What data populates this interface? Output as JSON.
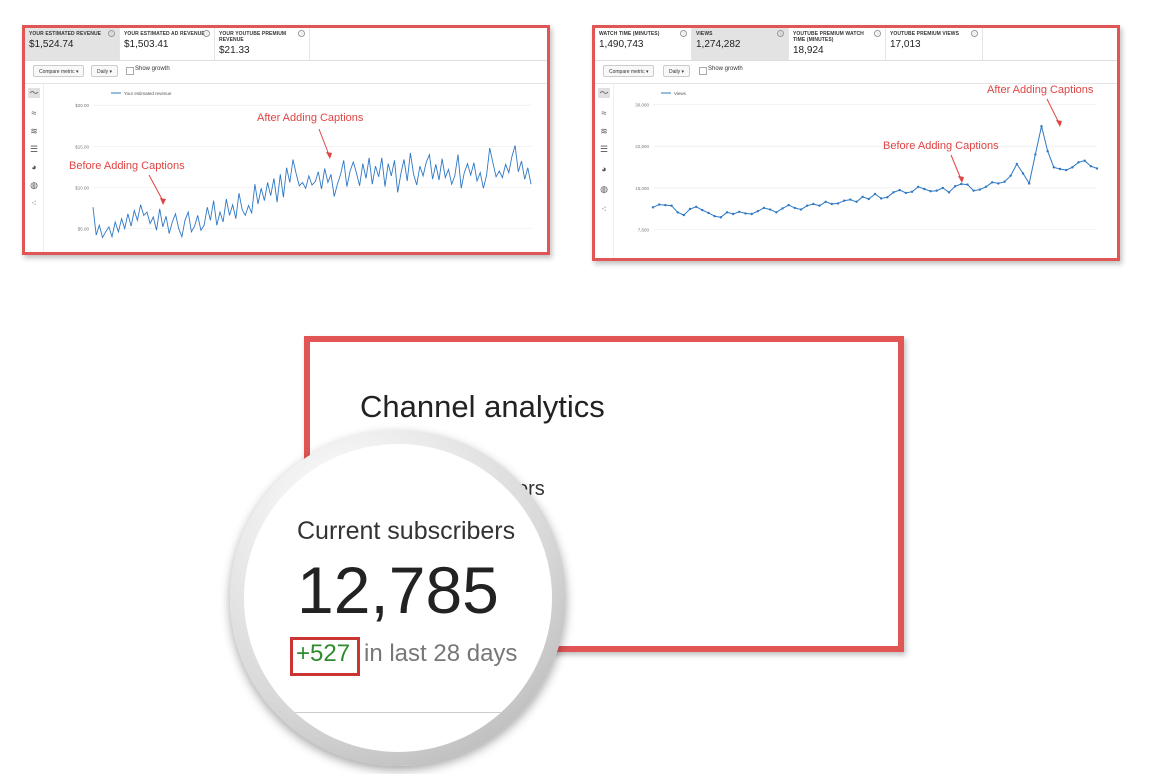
{
  "left_panel": {
    "metrics": [
      {
        "label": "YOUR ESTIMATED REVENUE",
        "value": "$1,524.74"
      },
      {
        "label": "YOUR ESTIMATED AD REVENUE",
        "value": "$1,503.41"
      },
      {
        "label": "YOUR YOUTUBE PREMIUM REVENUE",
        "value": "$21.33"
      }
    ],
    "compare_label": "Compare metric ▾",
    "period_label": "Daily ▾",
    "growth_label": "Show growth",
    "legend": "Your estimated revenue",
    "annotation_before": "Before Adding Captions",
    "annotation_after": "After Adding Captions"
  },
  "right_panel": {
    "metrics": [
      {
        "label": "WATCH TIME (MINUTES)",
        "value": "1,490,743"
      },
      {
        "label": "VIEWS",
        "value": "1,274,282"
      },
      {
        "label": "YOUTUBE PREMIUM WATCH TIME (MINUTES)",
        "value": "18,924"
      },
      {
        "label": "YOUTUBE PREMIUM VIEWS",
        "value": "17,013"
      }
    ],
    "compare_label": "Compare metric ▾",
    "period_label": "Daily ▾",
    "growth_label": "Show growth",
    "legend": "Views",
    "annotation_before": "Before Adding Captions",
    "annotation_after": "After Adding Captions"
  },
  "chart_data": [
    {
      "type": "line",
      "ylabel": "",
      "yticks": [
        "$20.00",
        "$15.00",
        "$10.00",
        "$5.00"
      ],
      "ylim": [
        3,
        21
      ],
      "series": [
        {
          "name": "Your estimated revenue",
          "color": "#2f78c4",
          "values": [
            7.6,
            4.2,
            5.4,
            3.9,
            4.6,
            5.2,
            4.0,
            5.8,
            4.6,
            6.2,
            5.0,
            6.8,
            5.3,
            7.2,
            6.0,
            7.9,
            6.6,
            7.0,
            5.6,
            6.4,
            4.8,
            7.4,
            5.2,
            6.5,
            4.4,
            5.8,
            6.8,
            5.0,
            4.0,
            6.0,
            7.0,
            4.6,
            5.3,
            6.6,
            4.8,
            5.4,
            7.6,
            6.0,
            8.4,
            5.4,
            7.0,
            5.8,
            8.6,
            6.6,
            7.9,
            6.2,
            9.3,
            7.3,
            6.6,
            7.8,
            6.9,
            10.4,
            8.0,
            9.9,
            8.4,
            10.6,
            9.0,
            11.1,
            8.2,
            11.6,
            8.8,
            12.4,
            10.6,
            13.4,
            11.7,
            10.2,
            10.6,
            9.9,
            11.4,
            10.3,
            10.7,
            11.9,
            9.8,
            12.3,
            10.6,
            11.6,
            8.9,
            10.4,
            11.6,
            13.3,
            10.1,
            12.0,
            13.1,
            11.8,
            10.2,
            12.9,
            11.1,
            13.6,
            10.4,
            12.6,
            11.3,
            13.6,
            10.1,
            12.9,
            11.4,
            13.3,
            9.4,
            11.7,
            13.4,
            10.8,
            14.2,
            11.6,
            10.3,
            12.6,
            11.4,
            13.1,
            14.0,
            11.0,
            12.8,
            10.9,
            13.5,
            11.2,
            12.2,
            10.4,
            11.4,
            14.0,
            9.9,
            11.8,
            12.9,
            11.5,
            13.0,
            10.8,
            11.8,
            9.9,
            11.5,
            14.8,
            13.0,
            11.3,
            12.0,
            11.2,
            12.8,
            11.8,
            13.8,
            15.1,
            11.9,
            13.2,
            11.0,
            12.4,
            10.4
          ]
        }
      ]
    },
    {
      "type": "line",
      "ylabel": "",
      "yticks": [
        "30,000",
        "22,500",
        "15,000",
        "7,500"
      ],
      "ylim": [
        4000,
        31000
      ],
      "series": [
        {
          "name": "Views",
          "color": "#2f78c4",
          "values": [
            11500,
            12000,
            11900,
            11800,
            10600,
            10100,
            11200,
            11600,
            11000,
            10500,
            9900,
            9700,
            10600,
            10300,
            10700,
            10400,
            10300,
            10800,
            11400,
            11100,
            10600,
            11300,
            11900,
            11400,
            11100,
            11800,
            12100,
            11800,
            12500,
            12100,
            12200,
            12700,
            12900,
            12500,
            13400,
            13000,
            13900,
            13100,
            13300,
            14200,
            14600,
            14100,
            14300,
            15200,
            14800,
            14400,
            14500,
            15000,
            14200,
            15300,
            15700,
            15600,
            14500,
            14700,
            15200,
            16000,
            15800,
            16100,
            17200,
            19300,
            17600,
            15800,
            21000,
            26100,
            21600,
            18700,
            18400,
            18200,
            18700,
            19600,
            19900,
            18900,
            18500
          ]
        }
      ]
    }
  ],
  "zoom": {
    "title": "Channel analytics",
    "peek_text": "ers",
    "label": "Current subscribers",
    "count": "12,785",
    "delta": "+527",
    "period": "in last 28 days"
  }
}
